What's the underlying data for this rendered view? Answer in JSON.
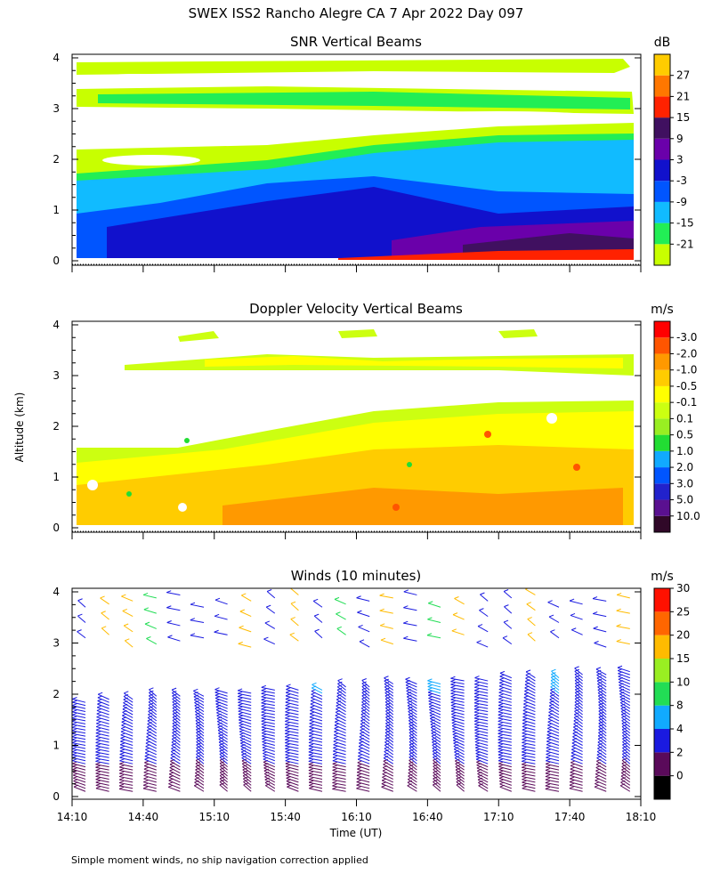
{
  "figure": {
    "title": "SWEX ISS2 Rancho Alegre CA   7 Apr 2022 Day 097",
    "shared_ylabel": "Altitude (km)",
    "xlabel": "Time (UT)",
    "footnote": "Simple moment winds, no ship navigation correction applied"
  },
  "chart_data": [
    {
      "type": "heatmap",
      "title": "SNR Vertical Beams",
      "x_range": [
        "14:10",
        "18:10"
      ],
      "x_ticks": [
        "14:10",
        "14:40",
        "15:10",
        "15:40",
        "16:10",
        "16:40",
        "17:10",
        "17:40",
        "18:10"
      ],
      "y_range": [
        0,
        4
      ],
      "y_ticks": [
        "0",
        "1",
        "2",
        "3",
        "4"
      ],
      "ylabel": "Altitude (km)",
      "colorbar": {
        "unit": "dB",
        "labels": [
          "-21",
          "-15",
          "-9",
          "-3",
          "3",
          "9",
          "15",
          "21",
          "27"
        ],
        "colors": [
          "#c8ff00",
          "#22ee55",
          "#11bbff",
          "#0055ff",
          "#1111cc",
          "#6a00aa",
          "#401060",
          "#ff2200",
          "#ff7700",
          "#ffcc00"
        ]
      },
      "layers": [
        {
          "alt_bottom_km": 3.0,
          "alt_top_km": 3.3,
          "value_db": -21
        },
        {
          "alt_bottom_km": 2.0,
          "alt_top_km": 2.5,
          "value_db": -15
        },
        {
          "alt_bottom_km": 1.0,
          "alt_top_km": 1.6,
          "value_db": -9
        },
        {
          "alt_bottom_km": 0.3,
          "alt_top_km": 1.0,
          "value_db": -3
        },
        {
          "alt_bottom_km": 0.1,
          "alt_top_km": 0.4,
          "value_db": 3
        }
      ]
    },
    {
      "type": "heatmap",
      "title": "Doppler Velocity Vertical Beams",
      "x_range": [
        "14:10",
        "18:10"
      ],
      "x_ticks": [
        "14:10",
        "14:40",
        "15:10",
        "15:40",
        "16:10",
        "16:40",
        "17:10",
        "17:40",
        "18:10"
      ],
      "y_range": [
        0,
        4
      ],
      "y_ticks": [
        "0",
        "1",
        "2",
        "3",
        "4"
      ],
      "colorbar": {
        "unit": "m/s",
        "labels": [
          "10.0",
          "5.0",
          "3.0",
          "2.0",
          "1.0",
          "0.5",
          "0.1",
          "-0.1",
          "-0.5",
          "-1.0",
          "-2.0",
          "-3.0"
        ],
        "colors": [
          "#300828",
          "#5a1090",
          "#2222cc",
          "#0055ff",
          "#11aaff",
          "#22dd33",
          "#99ee22",
          "#ccff11",
          "#ffff00",
          "#ffcc00",
          "#ff9900",
          "#ff5500",
          "#ff0000"
        ]
      },
      "layers": [
        {
          "alt_bottom_km": 0.1,
          "alt_top_km": 2.4,
          "value_ms": -0.5
        },
        {
          "alt_bottom_km": 3.0,
          "alt_top_km": 3.3,
          "value_ms": -0.1
        }
      ]
    },
    {
      "type": "wind_barbs",
      "title": "Winds (10 minutes)",
      "x_range": [
        "14:10",
        "18:10"
      ],
      "x_ticks": [
        "14:10",
        "14:40",
        "15:10",
        "15:40",
        "16:10",
        "16:40",
        "17:10",
        "17:40",
        "18:10"
      ],
      "y_range": [
        0,
        4
      ],
      "y_ticks": [
        "0",
        "1",
        "2",
        "3",
        "4"
      ],
      "barb_columns": 24,
      "colorbar": {
        "unit": "m/s",
        "labels": [
          "0",
          "2",
          "4",
          "8",
          "10",
          "15",
          "20",
          "25",
          "30"
        ],
        "colors": [
          "#000000",
          "#5a0a5a",
          "#1a1ae0",
          "#11aaff",
          "#22dd55",
          "#99ee22",
          "#ffbb00",
          "#ff6600",
          "#ff1100"
        ]
      }
    }
  ]
}
